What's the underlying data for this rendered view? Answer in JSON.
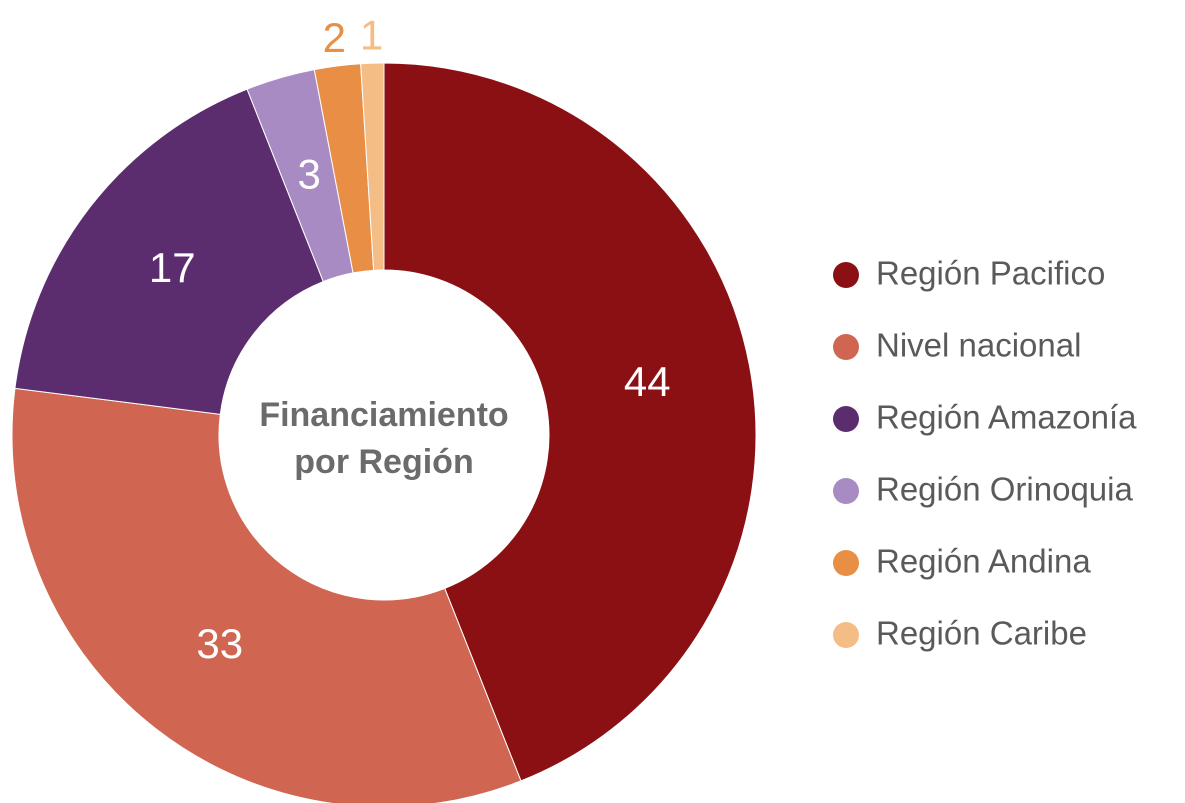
{
  "chart_data": {
    "type": "donut",
    "center_label": [
      "Financiamiento",
      "por Región"
    ],
    "categories": [
      "Región Pacifico",
      "Nivel nacional",
      "Región Amazonía",
      "Región Orinoquia",
      "Región Andina",
      "Región Caribe"
    ],
    "values": [
      44,
      33,
      17,
      3,
      2,
      1
    ],
    "colors": [
      "#8b1014",
      "#d06651",
      "#5c2d6e",
      "#a98bc4",
      "#e98e45",
      "#f4bd85"
    ],
    "legend": "right"
  }
}
